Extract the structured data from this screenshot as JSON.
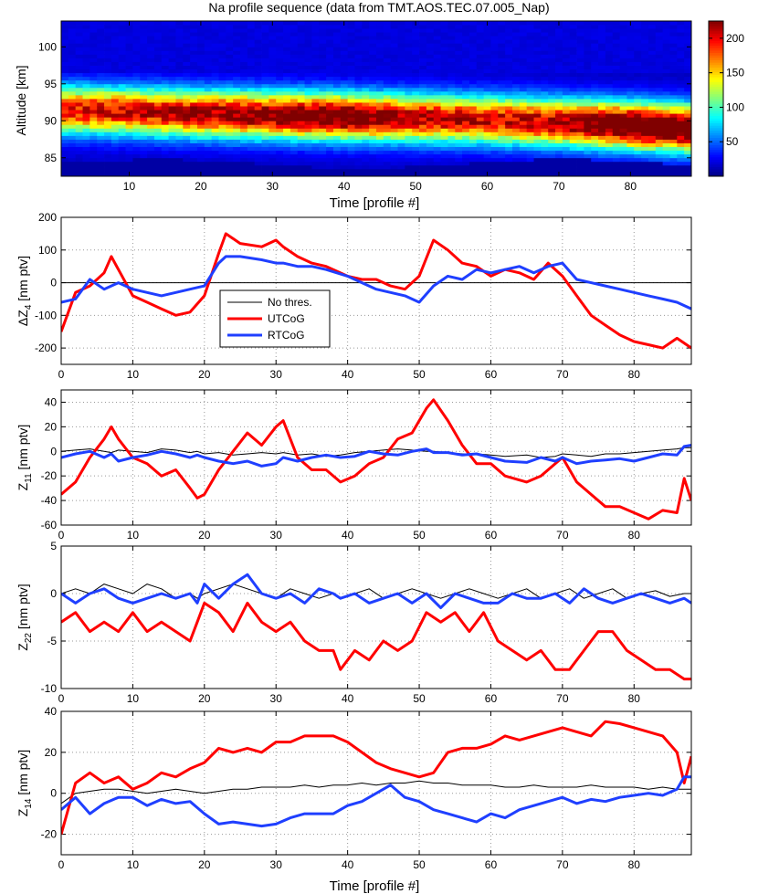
{
  "figure": {
    "title": "Na profile sequence (data from TMT.AOS.TEC.07.005_Nap)",
    "xlabel": "Time [profile #]"
  },
  "chart_data": [
    {
      "type": "heatmap",
      "title": "Na profile sequence (data from TMT.AOS.TEC.07.005_Nap)",
      "xlabel": "Time [profile #]",
      "ylabel": "Altitude [km]",
      "xlim": [
        0.5,
        88.5
      ],
      "ylim": [
        82.5,
        103.5
      ],
      "xticks": [
        10,
        20,
        30,
        40,
        50,
        60,
        70,
        80
      ],
      "yticks": [
        85,
        90,
        95,
        100
      ],
      "colorbar": {
        "clim": [
          0,
          225
        ],
        "ticks": [
          50,
          100,
          150,
          200
        ]
      },
      "layer_center_km": [
        91.5,
        91.3,
        91.0,
        90.8,
        90.6,
        90.4,
        90.2,
        89.8,
        89.4,
        89.0
      ],
      "layer_center_at_profile": [
        1,
        10,
        20,
        30,
        40,
        50,
        60,
        70,
        80,
        88
      ],
      "peak_density": [
        130,
        140,
        150,
        165,
        180,
        150,
        140,
        150,
        200,
        200
      ]
    },
    {
      "type": "line",
      "ylabel_base": "ΔZ",
      "ylabel_sub": "4",
      "ylabel_unit": "[nm ptv]",
      "xlim": [
        0,
        88
      ],
      "ylim": [
        -250,
        200
      ],
      "xticks": [
        0,
        10,
        20,
        30,
        40,
        50,
        60,
        70,
        80
      ],
      "yticks": [
        -200,
        -100,
        0,
        100,
        200
      ],
      "legend": [
        "No thres.",
        "UTCoG",
        "RTCoG"
      ],
      "x": [
        0,
        2,
        4,
        6,
        7,
        8,
        10,
        12,
        14,
        16,
        18,
        20,
        22,
        23,
        25,
        28,
        30,
        31,
        33,
        35,
        37,
        40,
        42,
        44,
        46,
        48,
        50,
        52,
        54,
        56,
        58,
        60,
        62,
        64,
        66,
        68,
        70,
        72,
        74,
        76,
        78,
        80,
        82,
        84,
        86,
        88
      ],
      "series": [
        {
          "name": "No thres.",
          "color": "#000000",
          "width": 1,
          "values": [
            0,
            0,
            0,
            0,
            0,
            0,
            0,
            0,
            0,
            0,
            0,
            0,
            0,
            0,
            0,
            0,
            0,
            0,
            0,
            0,
            0,
            0,
            0,
            0,
            0,
            0,
            0,
            0,
            0,
            0,
            0,
            0,
            0,
            0,
            0,
            0,
            0,
            0,
            0,
            0,
            0,
            0,
            0,
            0,
            0,
            0
          ]
        },
        {
          "name": "UTCoG",
          "color": "#ff0000",
          "width": 3,
          "values": [
            -150,
            -30,
            -10,
            30,
            80,
            40,
            -40,
            -60,
            -80,
            -100,
            -90,
            -40,
            90,
            150,
            120,
            110,
            130,
            110,
            80,
            60,
            50,
            20,
            10,
            10,
            -10,
            -20,
            20,
            130,
            100,
            60,
            50,
            20,
            40,
            30,
            10,
            60,
            20,
            -40,
            -100,
            -130,
            -160,
            -180,
            -190,
            -200,
            -170,
            -200
          ]
        },
        {
          "name": "RTCoG",
          "color": "#1f3fff",
          "width": 3,
          "values": [
            -60,
            -50,
            10,
            -20,
            -10,
            0,
            -20,
            -30,
            -40,
            -30,
            -20,
            -10,
            60,
            80,
            80,
            70,
            60,
            60,
            50,
            50,
            40,
            20,
            0,
            -20,
            -30,
            -40,
            -60,
            -10,
            20,
            10,
            40,
            30,
            40,
            50,
            30,
            50,
            60,
            10,
            0,
            -10,
            -20,
            -30,
            -40,
            -50,
            -60,
            -80
          ]
        }
      ]
    },
    {
      "type": "line",
      "ylabel_base": "Z",
      "ylabel_sub": "11",
      "ylabel_unit": "[nm ptv]",
      "xlim": [
        0,
        88
      ],
      "ylim": [
        -60,
        50
      ],
      "xticks": [
        0,
        10,
        20,
        30,
        40,
        50,
        60,
        70,
        80
      ],
      "yticks": [
        -60,
        -40,
        -20,
        0,
        20,
        40
      ],
      "x": [
        0,
        2,
        4,
        6,
        7,
        8,
        10,
        12,
        14,
        16,
        18,
        19,
        20,
        22,
        24,
        26,
        28,
        30,
        31,
        33,
        35,
        37,
        39,
        41,
        43,
        45,
        47,
        49,
        51,
        52,
        54,
        56,
        58,
        60,
        62,
        65,
        67,
        69,
        70,
        72,
        74,
        76,
        78,
        80,
        82,
        84,
        86,
        87,
        88
      ],
      "series": [
        {
          "name": "No thres.",
          "color": "#000000",
          "width": 1,
          "values": [
            0,
            1,
            2,
            0,
            -1,
            1,
            0,
            -1,
            2,
            1,
            -1,
            0,
            -2,
            -1,
            -3,
            -2,
            -1,
            -2,
            -1,
            -3,
            -2,
            -4,
            -3,
            -1,
            0,
            1,
            2,
            1,
            0,
            0,
            -1,
            -2,
            -2,
            -3,
            -4,
            -3,
            -5,
            -4,
            -2,
            -3,
            -4,
            -2,
            -2,
            -1,
            0,
            1,
            2,
            3,
            3
          ]
        },
        {
          "name": "UTCoG",
          "color": "#ff0000",
          "width": 3,
          "values": [
            -35,
            -25,
            -5,
            10,
            20,
            10,
            -5,
            -10,
            -20,
            -15,
            -30,
            -38,
            -35,
            -15,
            0,
            15,
            5,
            20,
            25,
            -5,
            -15,
            -15,
            -25,
            -20,
            -10,
            -5,
            10,
            15,
            35,
            42,
            25,
            5,
            -10,
            -10,
            -20,
            -25,
            -20,
            -10,
            -5,
            -25,
            -35,
            -45,
            -45,
            -50,
            -55,
            -48,
            -50,
            -22,
            -40
          ]
        },
        {
          "name": "RTCoG",
          "color": "#1f3fff",
          "width": 3,
          "values": [
            -5,
            -2,
            0,
            -5,
            -2,
            -8,
            -5,
            -3,
            0,
            -2,
            -5,
            -3,
            -5,
            -8,
            -10,
            -8,
            -12,
            -10,
            -5,
            -8,
            -5,
            -3,
            -5,
            -4,
            0,
            -2,
            -3,
            0,
            2,
            -1,
            -1,
            -3,
            -2,
            -5,
            -8,
            -9,
            -5,
            -8,
            -5,
            -10,
            -8,
            -7,
            -6,
            -8,
            -5,
            -2,
            -3,
            4,
            5
          ]
        }
      ]
    },
    {
      "type": "line",
      "ylabel_base": "Z",
      "ylabel_sub": "22",
      "ylabel_unit": "[nm ptv]",
      "xlim": [
        0,
        88
      ],
      "ylim": [
        -10,
        5
      ],
      "xticks": [
        0,
        10,
        20,
        30,
        40,
        50,
        60,
        70,
        80
      ],
      "yticks": [
        -10,
        -5,
        0,
        5
      ],
      "x": [
        0,
        2,
        4,
        6,
        8,
        10,
        12,
        14,
        16,
        18,
        19,
        20,
        22,
        24,
        26,
        28,
        30,
        32,
        34,
        36,
        38,
        39,
        41,
        43,
        45,
        47,
        49,
        51,
        53,
        55,
        57,
        59,
        61,
        63,
        65,
        67,
        69,
        71,
        73,
        75,
        77,
        79,
        81,
        83,
        85,
        87,
        88
      ],
      "series": [
        {
          "name": "No thres.",
          "color": "#000000",
          "width": 1,
          "values": [
            0,
            0.5,
            0,
            1,
            0.5,
            0,
            1,
            0.5,
            -0.5,
            0,
            -0.5,
            0,
            0.5,
            1,
            0.5,
            0,
            -0.5,
            0.5,
            0,
            -0.5,
            0,
            -0.5,
            0,
            0.5,
            -0.5,
            0,
            0.5,
            0,
            -0.5,
            0,
            0.5,
            0,
            -0.5,
            0,
            0.5,
            -0.5,
            0,
            0.5,
            -0.5,
            0,
            0.5,
            -0.5,
            0,
            0.3,
            -0.3,
            0,
            0
          ]
        },
        {
          "name": "UTCoG",
          "color": "#ff0000",
          "width": 3,
          "values": [
            -3,
            -2,
            -4,
            -3,
            -4,
            -2,
            -4,
            -3,
            -4,
            -5,
            -3,
            -1,
            -2,
            -4,
            -1,
            -3,
            -4,
            -3,
            -5,
            -6,
            -6,
            -8,
            -6,
            -7,
            -5,
            -6,
            -5,
            -2,
            -3,
            -2,
            -4,
            -2,
            -5,
            -6,
            -7,
            -6,
            -8,
            -8,
            -6,
            -4,
            -4,
            -6,
            -7,
            -8,
            -8,
            -9,
            -9
          ]
        },
        {
          "name": "RTCoG",
          "color": "#1f3fff",
          "width": 3,
          "values": [
            0,
            -1,
            0,
            0.5,
            -0.5,
            -1,
            -0.5,
            0,
            -0.5,
            0,
            -1,
            1,
            -0.5,
            1,
            2,
            0,
            -0.5,
            0,
            -1,
            0.5,
            0,
            -0.5,
            0,
            -1,
            -0.5,
            0,
            -1,
            0,
            -1.5,
            0,
            -0.5,
            -1,
            -1,
            0,
            -0.5,
            -0.5,
            0,
            -1,
            0.5,
            -0.5,
            -1,
            -0.5,
            0,
            -0.5,
            -1,
            -0.5,
            -1
          ]
        }
      ]
    },
    {
      "type": "line",
      "ylabel_base": "Z",
      "ylabel_sub": "14",
      "ylabel_unit": "[nm ptv]",
      "xlabel": "Time [profile #]",
      "xlim": [
        0,
        88
      ],
      "ylim": [
        -30,
        40
      ],
      "xticks": [
        0,
        10,
        20,
        30,
        40,
        50,
        60,
        70,
        80
      ],
      "yticks": [
        -20,
        0,
        20,
        40
      ],
      "x": [
        0,
        2,
        4,
        6,
        8,
        10,
        12,
        14,
        16,
        18,
        20,
        22,
        24,
        26,
        28,
        30,
        32,
        34,
        36,
        38,
        40,
        42,
        44,
        46,
        48,
        50,
        52,
        54,
        56,
        58,
        60,
        62,
        64,
        66,
        68,
        70,
        72,
        74,
        76,
        78,
        80,
        82,
        84,
        86,
        87,
        88
      ],
      "series": [
        {
          "name": "No thres.",
          "color": "#000000",
          "width": 1,
          "values": [
            -5,
            0,
            1,
            2,
            2,
            1,
            0,
            1,
            2,
            1,
            0,
            1,
            2,
            2,
            3,
            3,
            3,
            4,
            3,
            4,
            4,
            5,
            4,
            5,
            5,
            6,
            5,
            5,
            4,
            4,
            4,
            3,
            3,
            4,
            3,
            3,
            3,
            4,
            3,
            3,
            3,
            2,
            3,
            2,
            2,
            2
          ]
        },
        {
          "name": "UTCoG",
          "color": "#ff0000",
          "width": 3,
          "values": [
            -20,
            5,
            10,
            5,
            8,
            2,
            5,
            10,
            8,
            12,
            15,
            22,
            20,
            22,
            20,
            25,
            25,
            28,
            28,
            28,
            25,
            20,
            15,
            12,
            10,
            8,
            10,
            20,
            22,
            22,
            24,
            28,
            26,
            28,
            30,
            32,
            30,
            28,
            35,
            34,
            32,
            30,
            28,
            20,
            5,
            18
          ]
        },
        {
          "name": "RTCoG",
          "color": "#1f3fff",
          "width": 3,
          "values": [
            -8,
            -2,
            -10,
            -5,
            -2,
            -2,
            -6,
            -3,
            -5,
            -4,
            -10,
            -15,
            -14,
            -15,
            -16,
            -15,
            -12,
            -10,
            -10,
            -10,
            -6,
            -4,
            0,
            4,
            -2,
            -4,
            -8,
            -10,
            -12,
            -14,
            -10,
            -12,
            -8,
            -6,
            -4,
            -2,
            -5,
            -3,
            -4,
            -2,
            -1,
            0,
            -1,
            2,
            8,
            8
          ]
        }
      ]
    }
  ]
}
